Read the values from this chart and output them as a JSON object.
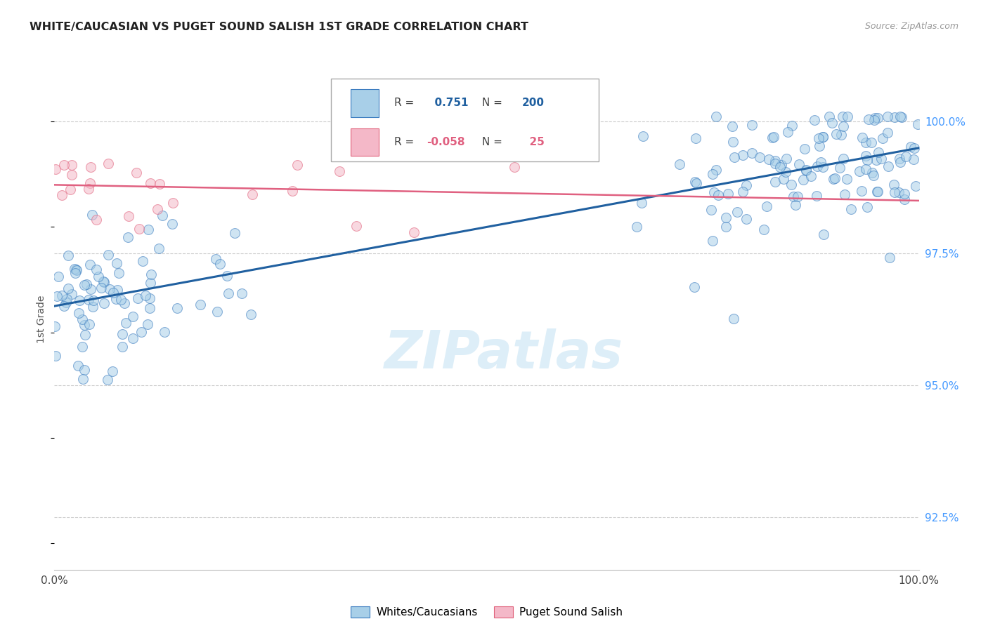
{
  "title": "WHITE/CAUCASIAN VS PUGET SOUND SALISH 1ST GRADE CORRELATION CHART",
  "source": "Source: ZipAtlas.com",
  "ylabel": "1st Grade",
  "ytick_labels": [
    "92.5%",
    "95.0%",
    "97.5%",
    "100.0%"
  ],
  "ytick_values": [
    92.5,
    95.0,
    97.5,
    100.0
  ],
  "xlim": [
    0,
    100
  ],
  "ylim": [
    91.5,
    101.0
  ],
  "blue_R": 0.751,
  "blue_N": 200,
  "pink_R": -0.058,
  "pink_N": 25,
  "blue_fill_color": "#a8cfe8",
  "blue_edge_color": "#3a7bbf",
  "pink_fill_color": "#f4b8c8",
  "pink_edge_color": "#e0607a",
  "blue_line_color": "#2060a0",
  "pink_line_color": "#e06080",
  "grid_color": "#cccccc",
  "watermark_color": "#ddeef8",
  "legend_label_blue": "Whites/Caucasians",
  "legend_label_pink": "Puget Sound Salish",
  "blue_trend_x0": 0,
  "blue_trend_x1": 100,
  "blue_trend_y0": 96.5,
  "blue_trend_y1": 99.5,
  "pink_trend_x0": 0,
  "pink_trend_x1": 100,
  "pink_trend_y0": 98.8,
  "pink_trend_y1": 98.5,
  "r_label_blue_color": "#2060a0",
  "r_label_pink_color": "#e06080",
  "n_label_blue_color": "#2060a0",
  "n_label_pink_color": "#e06080"
}
